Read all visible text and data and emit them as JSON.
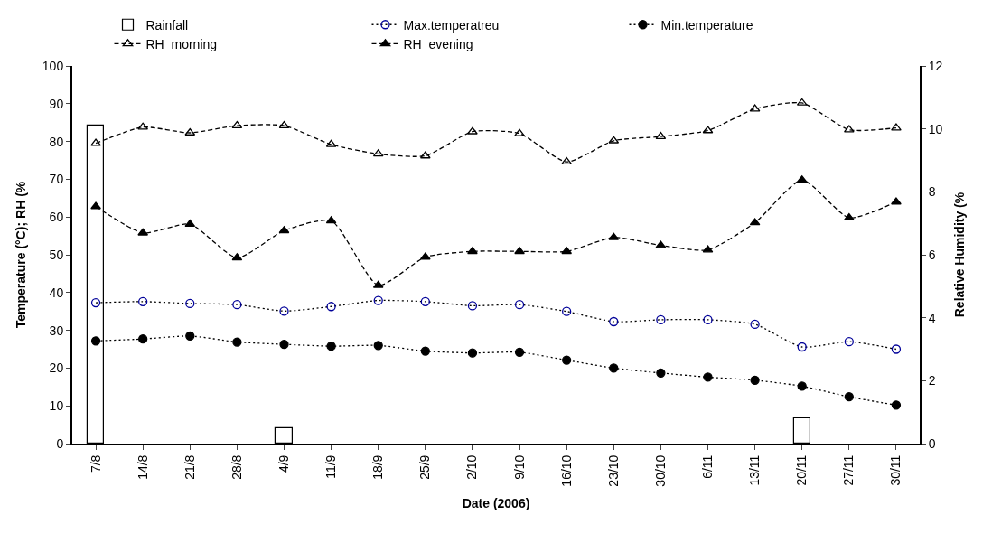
{
  "chart_data": {
    "type": "line",
    "xlabel": "Date (2006)",
    "ylabel": "Temperature (°C); RH (%",
    "y2label": "Relative Humidity (%",
    "categories": [
      "7/8",
      "14/8",
      "21/8",
      "28/8",
      "4/9",
      "11/9",
      "18/9",
      "25/9",
      "2/10",
      "9/10",
      "16/10",
      "23/10",
      "30/10",
      "6/11",
      "13/11",
      "20/11",
      "27/11",
      "30/11"
    ],
    "series": [
      {
        "name": "Rainfall",
        "type": "bar",
        "axis": "y2",
        "color": "#ffffff",
        "values": [
          10.1,
          0,
          0,
          0,
          0.5,
          0,
          0,
          0,
          0,
          0,
          0,
          0,
          0,
          0,
          0,
          0.8,
          0,
          0
        ]
      },
      {
        "name": "Max.temperatreu",
        "color": "#000099",
        "marker": "circle-open",
        "line_style": "dotted",
        "values": [
          37.3,
          37.6,
          37.1,
          36.8,
          35.1,
          36.3,
          37.9,
          37.6,
          36.5,
          36.8,
          35.0,
          32.3,
          32.8,
          32.8,
          31.6,
          25.6,
          27.0,
          25.0
        ]
      },
      {
        "name": "Min.temperature",
        "color": "#000000",
        "marker": "circle",
        "line_style": "dotted",
        "values": [
          27.2,
          27.7,
          28.5,
          26.9,
          26.3,
          25.8,
          26.0,
          24.5,
          24.0,
          24.2,
          22.1,
          20.0,
          18.7,
          17.6,
          16.8,
          15.2,
          12.4,
          10.2
        ]
      },
      {
        "name": "RH_morning",
        "color": "#000000",
        "marker": "triangle-open",
        "line_style": "dashed",
        "values": [
          79.5,
          83.8,
          82.3,
          84.2,
          84.2,
          79.2,
          76.7,
          76.2,
          82.6,
          82.1,
          74.6,
          80.2,
          81.3,
          82.9,
          88.6,
          90.2,
          83.1,
          83.6
        ]
      },
      {
        "name": "RH_evening",
        "color": "#000000",
        "marker": "triangle",
        "line_style": "dashed",
        "values": [
          62.8,
          55.8,
          58.1,
          49.2,
          56.4,
          59.0,
          41.9,
          49.4,
          50.9,
          50.9,
          50.9,
          54.6,
          52.5,
          51.3,
          58.5,
          69.8,
          59.8,
          64.0
        ]
      }
    ],
    "ylim": [
      0,
      100
    ],
    "yticks": [
      0,
      10,
      20,
      30,
      40,
      50,
      60,
      70,
      80,
      90,
      100
    ],
    "y2lim": [
      0,
      12
    ],
    "y2ticks": [
      0,
      2,
      4,
      6,
      8,
      10,
      12
    ],
    "legend": "top"
  }
}
